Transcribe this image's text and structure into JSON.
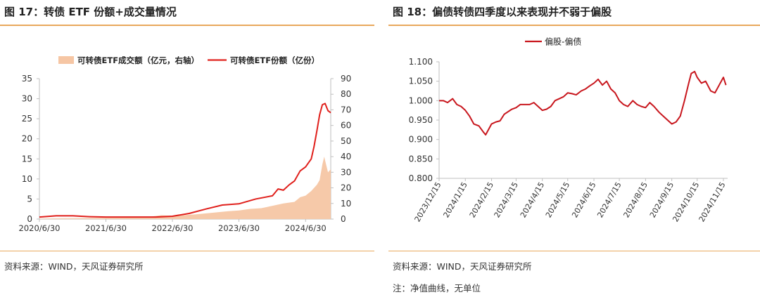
{
  "left": {
    "title": "图 17：转债 ETF 份额+成交量情况",
    "source": "资料来源：WIND，天风证券研究所"
  },
  "right": {
    "title": "图 18：偏债转债四季度以来表现并不弱于偏股",
    "source": "资料来源：WIND，天风证券研究所",
    "note": "注：净值曲线，无单位"
  },
  "colors": {
    "accent_rule": "#e8a85c",
    "volume_fill": "#f6c6a4",
    "line_red": "#e0201c",
    "axis_grey": "#bfbfbf"
  },
  "chart_data": [
    {
      "type": "line",
      "legend_position": "top",
      "grid": false,
      "x_ticks": [
        "2020/6/30",
        "2021/6/30",
        "2022/6/30",
        "2023/6/30",
        "2024/6/30"
      ],
      "x_range": [
        "2020/6/30",
        "2024/11/15"
      ],
      "y_left_ticks": [
        "0",
        "5",
        "10",
        "15",
        "20",
        "25",
        "30",
        "35"
      ],
      "y_left_range": [
        0,
        35
      ],
      "y_right_ticks": [
        "0",
        "10",
        "20",
        "30",
        "40",
        "50",
        "60",
        "70",
        "80",
        "90"
      ],
      "y_right_range": [
        0,
        90
      ],
      "series": [
        {
          "name": "可转债ETF成交额（亿元，右轴）",
          "type": "area",
          "axis": "right",
          "color": "#f6c6a4",
          "x": [
            "2020/6/30",
            "2020/10/31",
            "2021/2/28",
            "2021/6/30",
            "2021/10/31",
            "2022/2/28",
            "2022/4/30",
            "2022/6/30",
            "2022/10/31",
            "2023/1/31",
            "2023/4/30",
            "2023/6/30",
            "2023/8/31",
            "2023/10/31",
            "2023/12/31",
            "2024/2/29",
            "2024/4/30",
            "2024/5/31",
            "2024/6/30",
            "2024/7/31",
            "2024/8/31",
            "2024/9/15",
            "2024/9/30",
            "2024/10/10",
            "2024/10/31",
            "2024/11/15"
          ],
          "values": [
            0.3,
            0.5,
            0.6,
            0.8,
            0.9,
            1.5,
            2.5,
            2.0,
            3.0,
            4.0,
            5.0,
            5.5,
            6.5,
            7.0,
            8.5,
            10,
            11,
            14,
            15,
            18,
            22,
            25,
            35,
            40,
            30,
            32
          ]
        },
        {
          "name": "可转债ETF份额（亿份）",
          "type": "line",
          "axis": "left",
          "color": "#e0201c",
          "x": [
            "2020/6/30",
            "2020/9/30",
            "2020/12/31",
            "2021/3/31",
            "2021/6/30",
            "2021/9/30",
            "2021/12/31",
            "2022/3/31",
            "2022/6/30",
            "2022/9/30",
            "2022/12/31",
            "2023/3/31",
            "2023/6/30",
            "2023/9/30",
            "2023/12/31",
            "2024/1/31",
            "2024/2/29",
            "2024/3/31",
            "2024/4/30",
            "2024/5/31",
            "2024/6/30",
            "2024/7/31",
            "2024/8/15",
            "2024/8/31",
            "2024/9/15",
            "2024/9/30",
            "2024/10/15",
            "2024/10/31",
            "2024/11/15"
          ],
          "values": [
            0.5,
            0.8,
            0.8,
            0.6,
            0.5,
            0.5,
            0.5,
            0.5,
            0.7,
            1.4,
            2.5,
            3.5,
            3.8,
            5.0,
            5.8,
            7.5,
            7.2,
            8.5,
            9.5,
            12.0,
            13.0,
            15.0,
            18.0,
            22.0,
            26.0,
            28.5,
            28.8,
            27.0,
            26.5
          ]
        }
      ]
    },
    {
      "type": "line",
      "legend_position": "top",
      "grid": false,
      "x_ticks": [
        "2023/12/15",
        "2024/1/15",
        "2024/2/15",
        "2024/3/15",
        "2024/4/15",
        "2024/5/15",
        "2024/6/15",
        "2024/7/15",
        "2024/8/15",
        "2024/9/15",
        "2024/10/15",
        "2024/11/15"
      ],
      "x_range": [
        "2023/12/15",
        "2024/11/20"
      ],
      "y_ticks": [
        "0.800",
        "0.850",
        "0.900",
        "0.950",
        "1.000",
        "1.050",
        "1.100"
      ],
      "y_range": [
        0.8,
        1.1
      ],
      "series": [
        {
          "name": "偏股-偏债",
          "color": "#c8161d",
          "x": [
            "2023/12/15",
            "2023/12/20",
            "2023/12/25",
            "2023/12/31",
            "2024/1/5",
            "2024/1/10",
            "2024/1/15",
            "2024/1/20",
            "2024/1/25",
            "2024/1/31",
            "2024/2/5",
            "2024/2/8",
            "2024/2/15",
            "2024/2/20",
            "2024/2/25",
            "2024/3/1",
            "2024/3/10",
            "2024/3/15",
            "2024/3/20",
            "2024/3/31",
            "2024/4/5",
            "2024/4/10",
            "2024/4/15",
            "2024/4/20",
            "2024/4/25",
            "2024/4/30",
            "2024/5/10",
            "2024/5/15",
            "2024/5/20",
            "2024/5/25",
            "2024/5/31",
            "2024/6/5",
            "2024/6/10",
            "2024/6/15",
            "2024/6/20",
            "2024/6/25",
            "2024/6/30",
            "2024/7/5",
            "2024/7/10",
            "2024/7/15",
            "2024/7/20",
            "2024/7/25",
            "2024/7/31",
            "2024/8/5",
            "2024/8/10",
            "2024/8/15",
            "2024/8/20",
            "2024/8/25",
            "2024/8/31",
            "2024/9/5",
            "2024/9/10",
            "2024/9/15",
            "2024/9/20",
            "2024/9/25",
            "2024/9/30",
            "2024/10/5",
            "2024/10/8",
            "2024/10/12",
            "2024/10/15",
            "2024/10/20",
            "2024/10/25",
            "2024/10/31",
            "2024/11/5",
            "2024/11/10",
            "2024/11/15",
            "2024/11/18"
          ],
          "values": [
            1.0,
            1.0,
            0.995,
            1.005,
            0.99,
            0.985,
            0.975,
            0.96,
            0.94,
            0.935,
            0.92,
            0.912,
            0.94,
            0.945,
            0.948,
            0.965,
            0.978,
            0.982,
            0.99,
            0.99,
            0.995,
            0.985,
            0.975,
            0.978,
            0.985,
            1.0,
            1.01,
            1.02,
            1.018,
            1.015,
            1.025,
            1.03,
            1.038,
            1.045,
            1.055,
            1.04,
            1.05,
            1.03,
            1.02,
            1.0,
            0.99,
            0.985,
            1.0,
            0.99,
            0.985,
            0.982,
            0.995,
            0.985,
            0.97,
            0.96,
            0.95,
            0.94,
            0.945,
            0.96,
            1.0,
            1.045,
            1.07,
            1.075,
            1.06,
            1.045,
            1.05,
            1.025,
            1.02,
            1.04,
            1.06,
            1.04
          ]
        }
      ]
    }
  ]
}
